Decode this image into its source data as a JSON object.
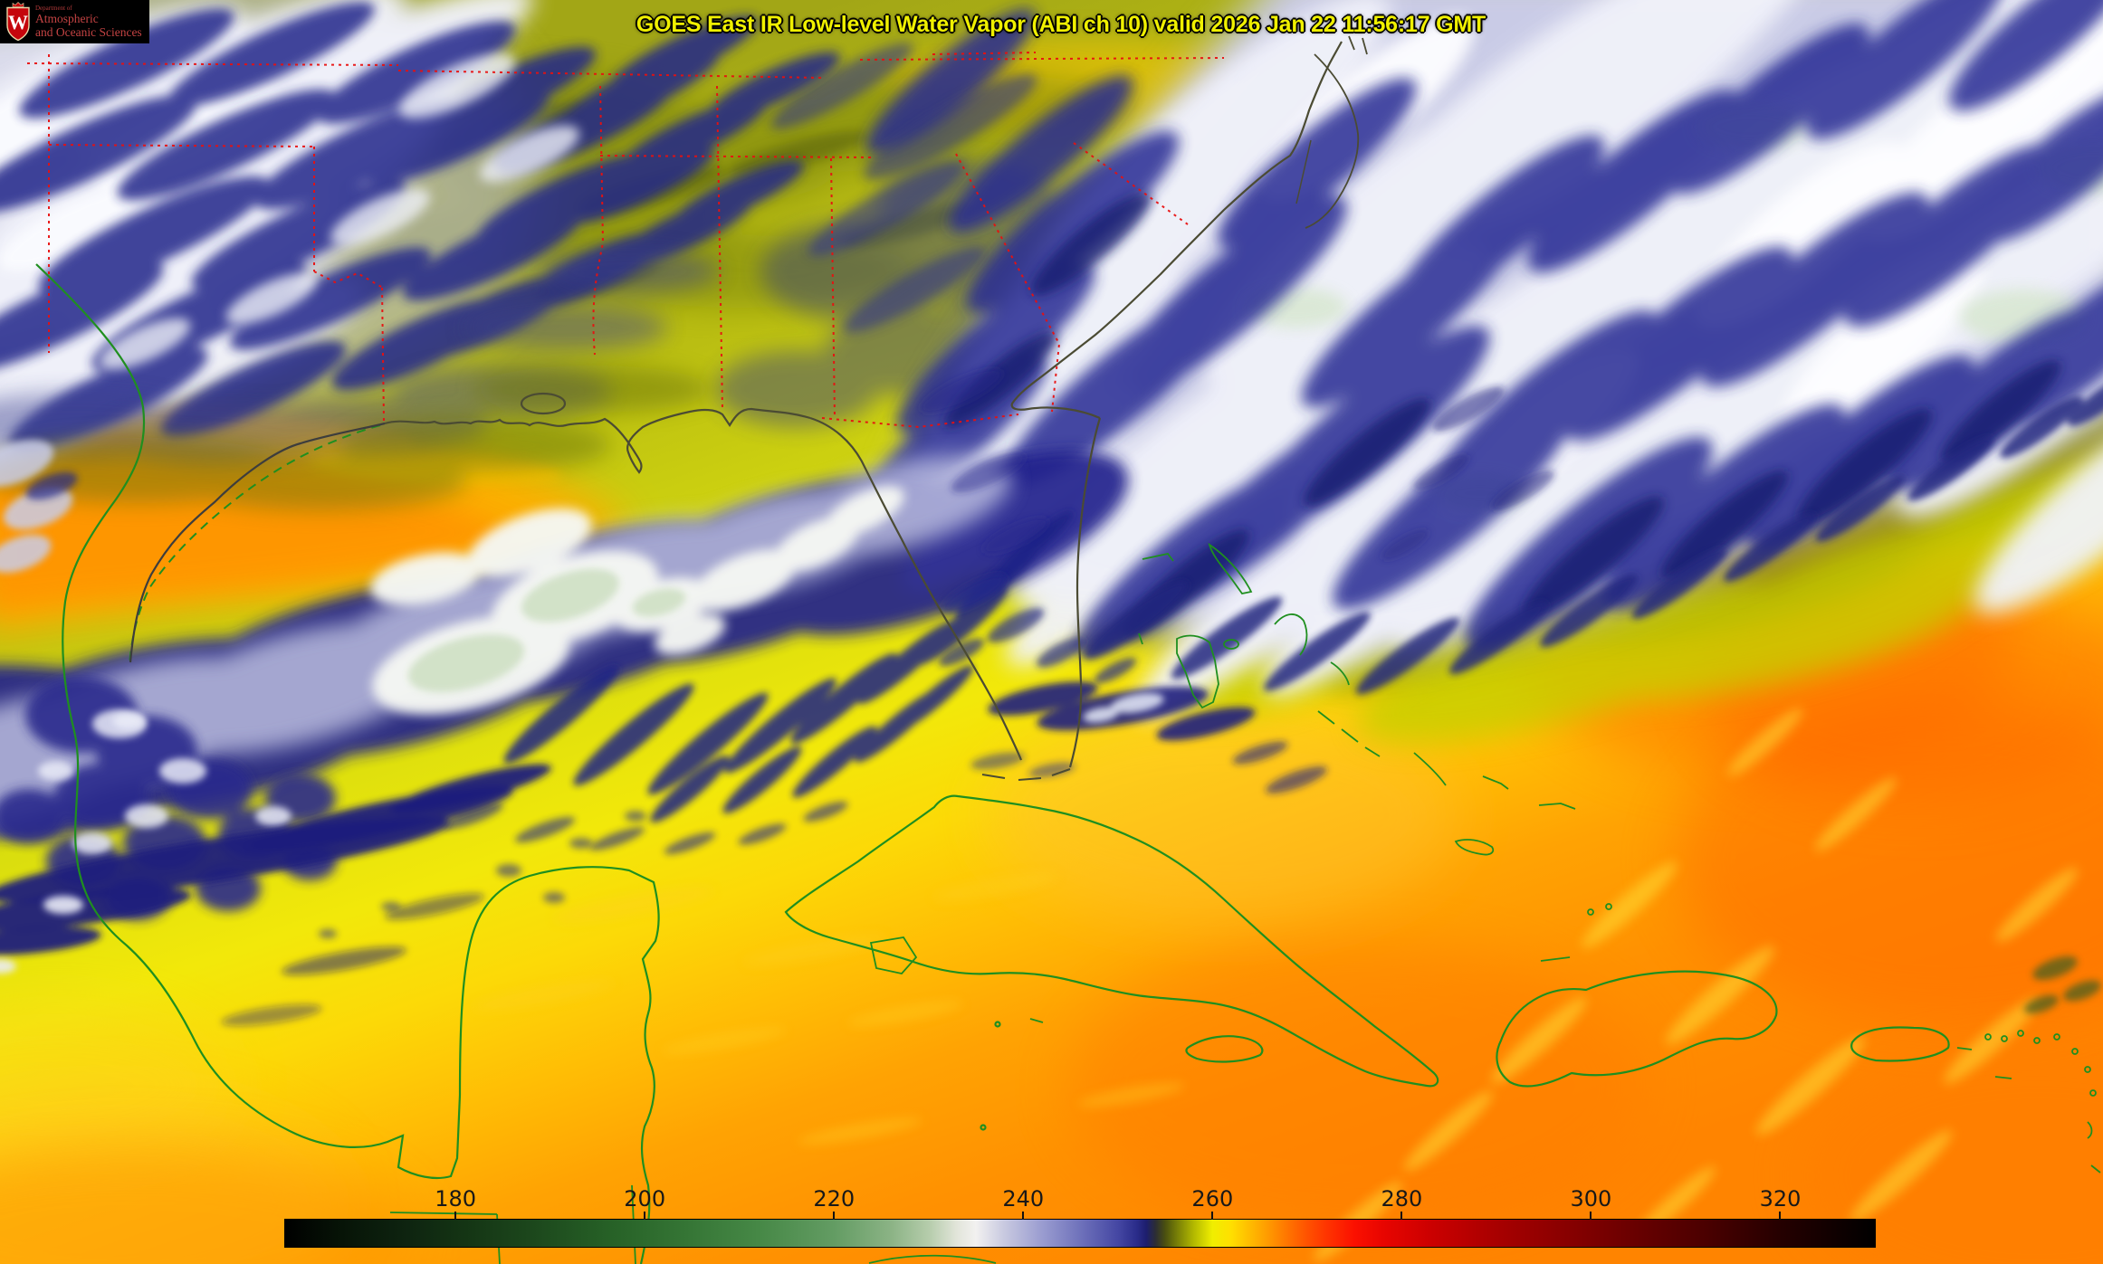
{
  "header": {
    "title": "GOES East IR Low-level Water Vapor (ABI ch 10) valid 2026 Jan 22 11:56:17 GMT"
  },
  "logo": {
    "department": "Department of",
    "line1": "Atmospheric",
    "line2": "and Oceanic Sciences",
    "crest_letter": "W"
  },
  "colorbar": {
    "min_value": 162,
    "max_value": 330,
    "tick_values": [
      180,
      200,
      220,
      240,
      260,
      280,
      300,
      320
    ],
    "gradient_stops": [
      {
        "value": 162,
        "color": "#000000"
      },
      {
        "value": 168,
        "color": "#071407"
      },
      {
        "value": 175,
        "color": "#0e2410"
      },
      {
        "value": 180,
        "color": "#133213"
      },
      {
        "value": 188,
        "color": "#1c471c"
      },
      {
        "value": 196,
        "color": "#266026"
      },
      {
        "value": 204,
        "color": "#347434"
      },
      {
        "value": 212,
        "color": "#468846"
      },
      {
        "value": 220,
        "color": "#639c63"
      },
      {
        "value": 226,
        "color": "#8bb385"
      },
      {
        "value": 230,
        "color": "#b5ccab"
      },
      {
        "value": 233,
        "color": "#e2e5da"
      },
      {
        "value": 235,
        "color": "#f2f1f0"
      },
      {
        "value": 238,
        "color": "#c8c9e0"
      },
      {
        "value": 242,
        "color": "#9a9cd0"
      },
      {
        "value": 246,
        "color": "#6f72bb"
      },
      {
        "value": 250,
        "color": "#4547a3"
      },
      {
        "value": 252,
        "color": "#2a2c8a"
      },
      {
        "value": 253,
        "color": "#1d1e6e"
      },
      {
        "value": 254,
        "color": "#2c2e33"
      },
      {
        "value": 255,
        "color": "#4b500f"
      },
      {
        "value": 256,
        "color": "#6e7608"
      },
      {
        "value": 258,
        "color": "#b2b800"
      },
      {
        "value": 260,
        "color": "#f0ee00"
      },
      {
        "value": 262,
        "color": "#ffdf00"
      },
      {
        "value": 264,
        "color": "#ffbb00"
      },
      {
        "value": 266,
        "color": "#ff9800"
      },
      {
        "value": 268,
        "color": "#ff7300"
      },
      {
        "value": 270,
        "color": "#ff5200"
      },
      {
        "value": 272,
        "color": "#ff3500"
      },
      {
        "value": 275,
        "color": "#fb1000"
      },
      {
        "value": 278,
        "color": "#e80500"
      },
      {
        "value": 283,
        "color": "#cc0000"
      },
      {
        "value": 290,
        "color": "#a80000"
      },
      {
        "value": 297,
        "color": "#8a0000"
      },
      {
        "value": 305,
        "color": "#670000"
      },
      {
        "value": 312,
        "color": "#4b0000"
      },
      {
        "value": 320,
        "color": "#250000"
      },
      {
        "value": 330,
        "color": "#000000"
      }
    ]
  },
  "palette": {
    "title_text": "#f0f000",
    "logo_text": "#c44343",
    "logo_background": "#000000",
    "crest_red": "#c5050c",
    "colorbar_label": "#181818",
    "coastline_green": "#1f8f1f",
    "coastline_dark": "#4b4b33",
    "state_border_red": "#e81010",
    "moist_cloud_white": "#f1f2fa",
    "moist_cloud_lavender": "#c9cbe6",
    "dry_navy": "#252a92",
    "dry_olive": "#79830b",
    "warm_yellow": "#f2e80a",
    "warm_orange": "#ff9101"
  }
}
